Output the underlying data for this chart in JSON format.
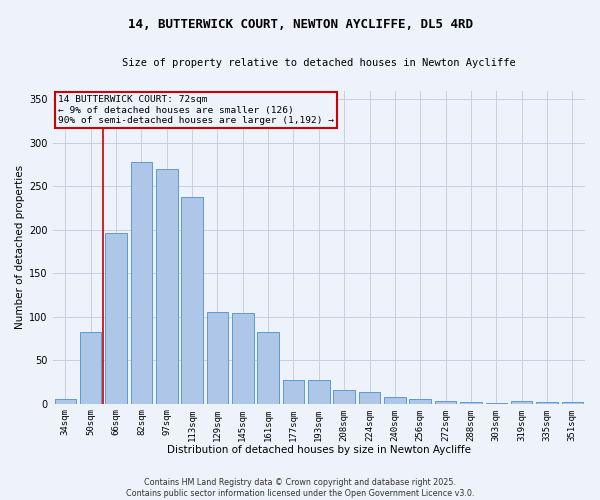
{
  "title_line1": "14, BUTTERWICK COURT, NEWTON AYCLIFFE, DL5 4RD",
  "title_line2": "Size of property relative to detached houses in Newton Aycliffe",
  "xlabel": "Distribution of detached houses by size in Newton Aycliffe",
  "ylabel": "Number of detached properties",
  "categories": [
    "34sqm",
    "50sqm",
    "66sqm",
    "82sqm",
    "97sqm",
    "113sqm",
    "129sqm",
    "145sqm",
    "161sqm",
    "177sqm",
    "193sqm",
    "208sqm",
    "224sqm",
    "240sqm",
    "256sqm",
    "272sqm",
    "288sqm",
    "303sqm",
    "319sqm",
    "335sqm",
    "351sqm"
  ],
  "values": [
    5,
    83,
    196,
    278,
    270,
    238,
    105,
    104,
    83,
    27,
    27,
    16,
    13,
    8,
    6,
    3,
    2,
    1,
    3,
    2,
    2
  ],
  "bar_color": "#aec6e8",
  "bar_edge_color": "#5b9bd5",
  "vline_x": 1.5,
  "vline_color": "#cc0000",
  "ylim": [
    0,
    360
  ],
  "yticks": [
    0,
    50,
    100,
    150,
    200,
    250,
    300,
    350
  ],
  "annotation_text": "14 BUTTERWICK COURT: 72sqm\n← 9% of detached houses are smaller (126)\n90% of semi-detached houses are larger (1,192) →",
  "annotation_box_color": "#cc0000",
  "footer_line1": "Contains HM Land Registry data © Crown copyright and database right 2025.",
  "footer_line2": "Contains public sector information licensed under the Open Government Licence v3.0.",
  "background_color": "#eef2fa",
  "grid_color": "#c8cfe0"
}
